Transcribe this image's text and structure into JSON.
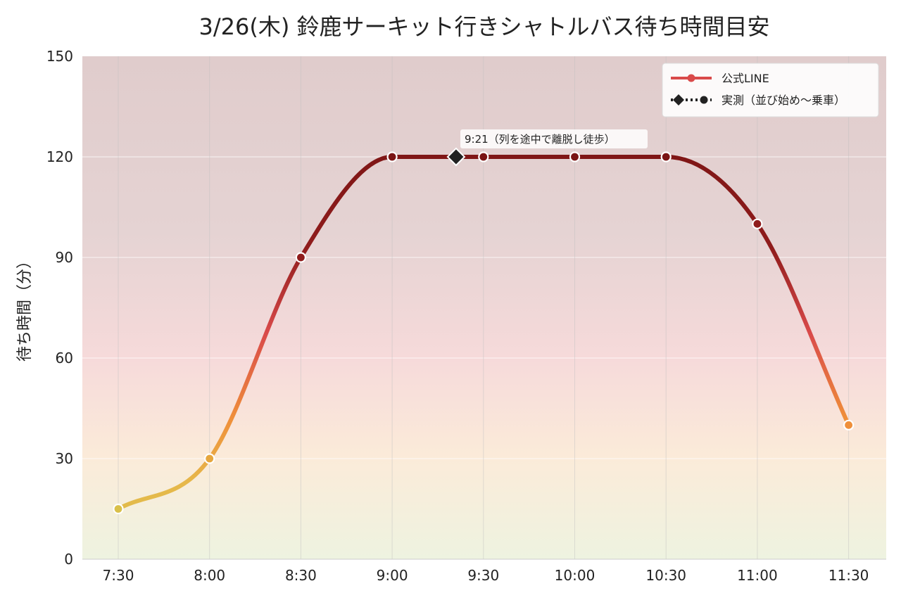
{
  "chart_data": {
    "type": "line",
    "title": "3/26(木) 鈴鹿サーキット行きシャトルバス待ち時間目安",
    "xlabel": "",
    "ylabel": "待ち時間（分）",
    "x_tick_labels": [
      "7:30",
      "8:00",
      "8:30",
      "9:00",
      "9:30",
      "10:00",
      "10:30",
      "11:00",
      "11:30"
    ],
    "y_ticks": [
      0,
      30,
      60,
      90,
      120,
      150
    ],
    "ylim": [
      0,
      150
    ],
    "grid": true,
    "legend_position": "top-right",
    "series": [
      {
        "name": "公式LINE",
        "x": [
          "7:30",
          "8:00",
          "8:30",
          "9:00",
          "9:30",
          "10:00",
          "10:30",
          "11:00",
          "11:30"
        ],
        "values": [
          15,
          30,
          90,
          120,
          120,
          120,
          120,
          100,
          40
        ]
      },
      {
        "name": "実測（並び始め〜乗車）",
        "x": [
          "9:21"
        ],
        "values": [
          120
        ]
      }
    ],
    "annotations": [
      {
        "text": "9:21（列を途中で離脱し徒歩）",
        "x": "9:21",
        "y": 120
      }
    ],
    "colors": {
      "low": "#d9c04a",
      "mid_low": "#ef8f3a",
      "mid": "#d94a4a",
      "high": "#7a1414",
      "marker_actual": "#222222"
    }
  }
}
